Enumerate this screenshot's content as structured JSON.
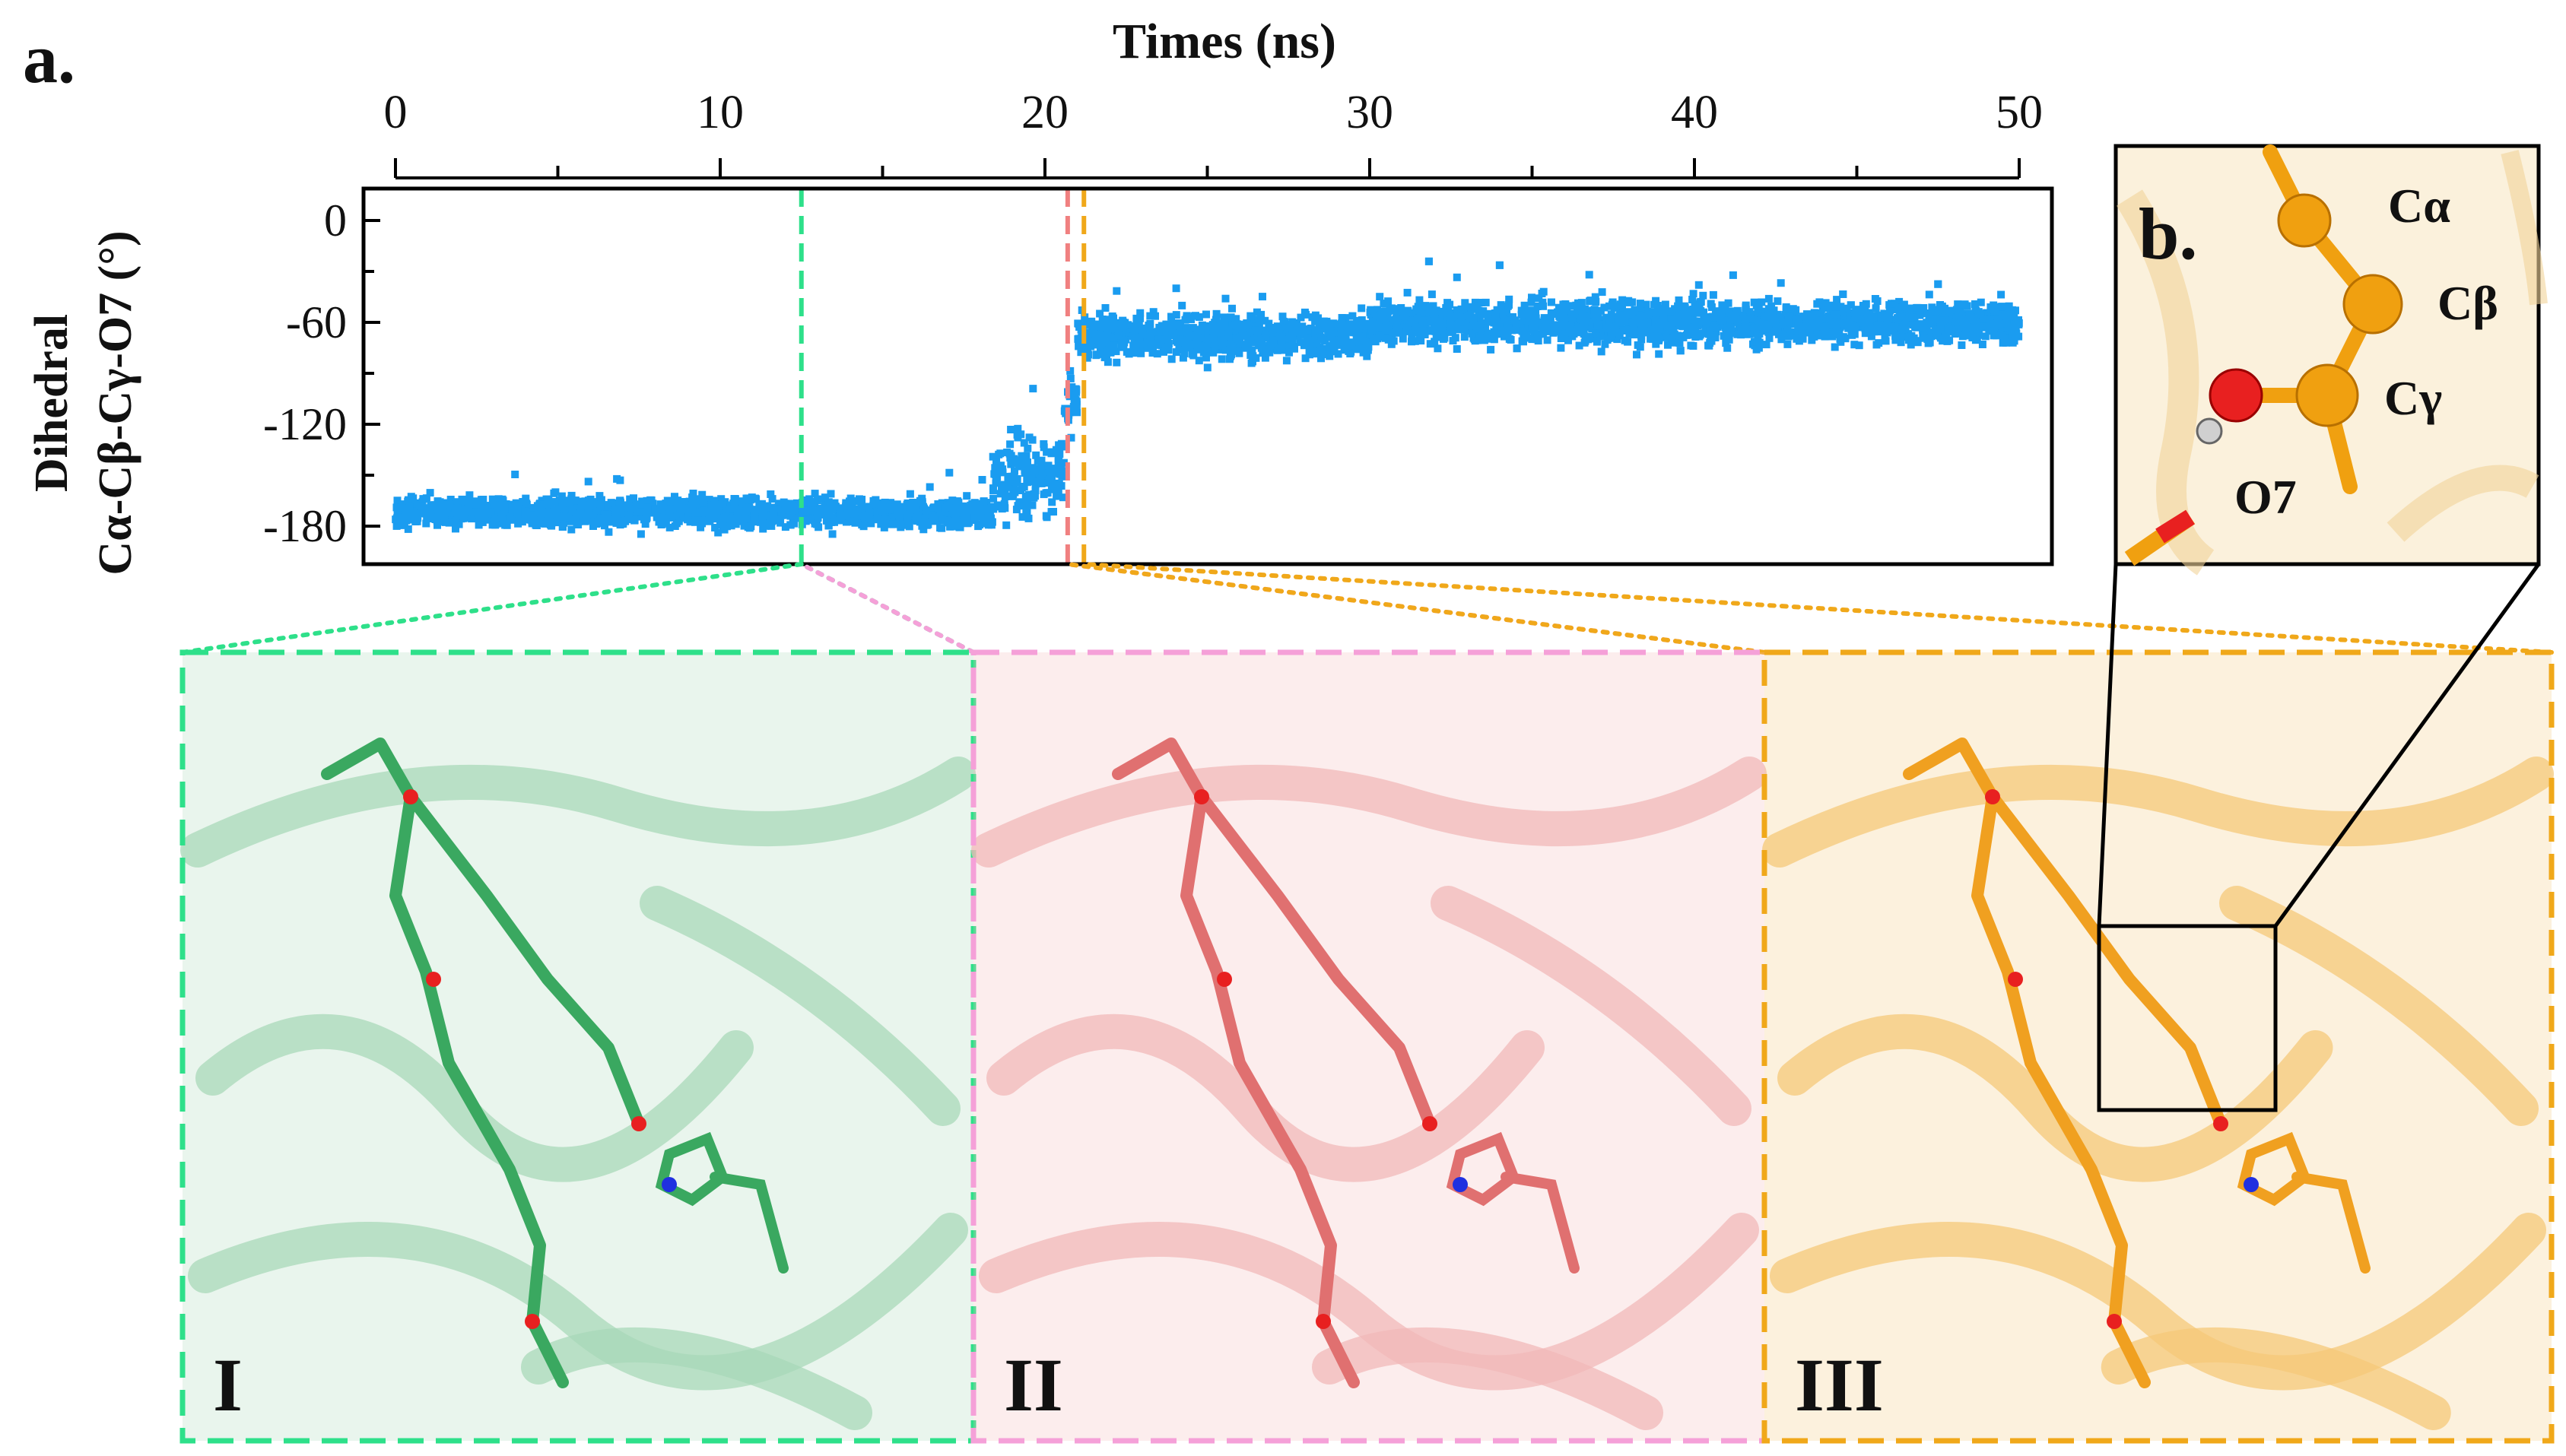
{
  "panel_label_a": "a.",
  "panel_label_b": "b.",
  "chart_data": {
    "type": "scatter",
    "title": "",
    "xlabel": "Times (ns)",
    "ylabel_line1": "Dihedral",
    "ylabel_line2": "Cα-Cβ-Cγ-O7 (°)",
    "xlim": [
      0,
      50
    ],
    "ylim": [
      -200,
      20
    ],
    "xticks": [
      0,
      10,
      20,
      30,
      40,
      50
    ],
    "yticks": [
      0,
      -60,
      -120,
      -180
    ],
    "grid": false,
    "point_color": "#1a9cf0",
    "segments": [
      {
        "x_start": 0,
        "x_end": 18.4,
        "mean": -172,
        "spread": 8
      },
      {
        "x_start": 18.4,
        "x_end": 20.6,
        "mean": -150,
        "spread": 22
      },
      {
        "x_start": 20.6,
        "x_end": 21.0,
        "mean": -105,
        "spread": 20
      },
      {
        "x_start": 21.0,
        "x_end": 30,
        "mean": -68,
        "spread": 12
      },
      {
        "x_start": 30,
        "x_end": 50,
        "mean": -60,
        "spread": 12
      }
    ],
    "markers": [
      {
        "x": 12.5,
        "color": "#2ee08a",
        "label": "I"
      },
      {
        "x": 20.7,
        "color": "#f08080",
        "label": "II"
      },
      {
        "x": 21.2,
        "color": "#f0a81a",
        "label": "III"
      }
    ]
  },
  "snapshots": [
    {
      "label": "I",
      "border_color": "#2ee08a",
      "ribbon_color": "#a8d8b8",
      "stick_color": "#3aa860"
    },
    {
      "label": "II",
      "border_color": "#f5a0d8",
      "ribbon_color": "#f2b8b8",
      "stick_color": "#e07070"
    },
    {
      "label": "III",
      "border_color": "#f0a81a",
      "ribbon_color": "#f5c878",
      "stick_color": "#f0a020"
    }
  ],
  "inset": {
    "atom_labels": [
      "Cα",
      "Cβ",
      "Cγ",
      "O7"
    ],
    "atom_color": "#f0a010",
    "oxygen_color": "#e82020"
  }
}
